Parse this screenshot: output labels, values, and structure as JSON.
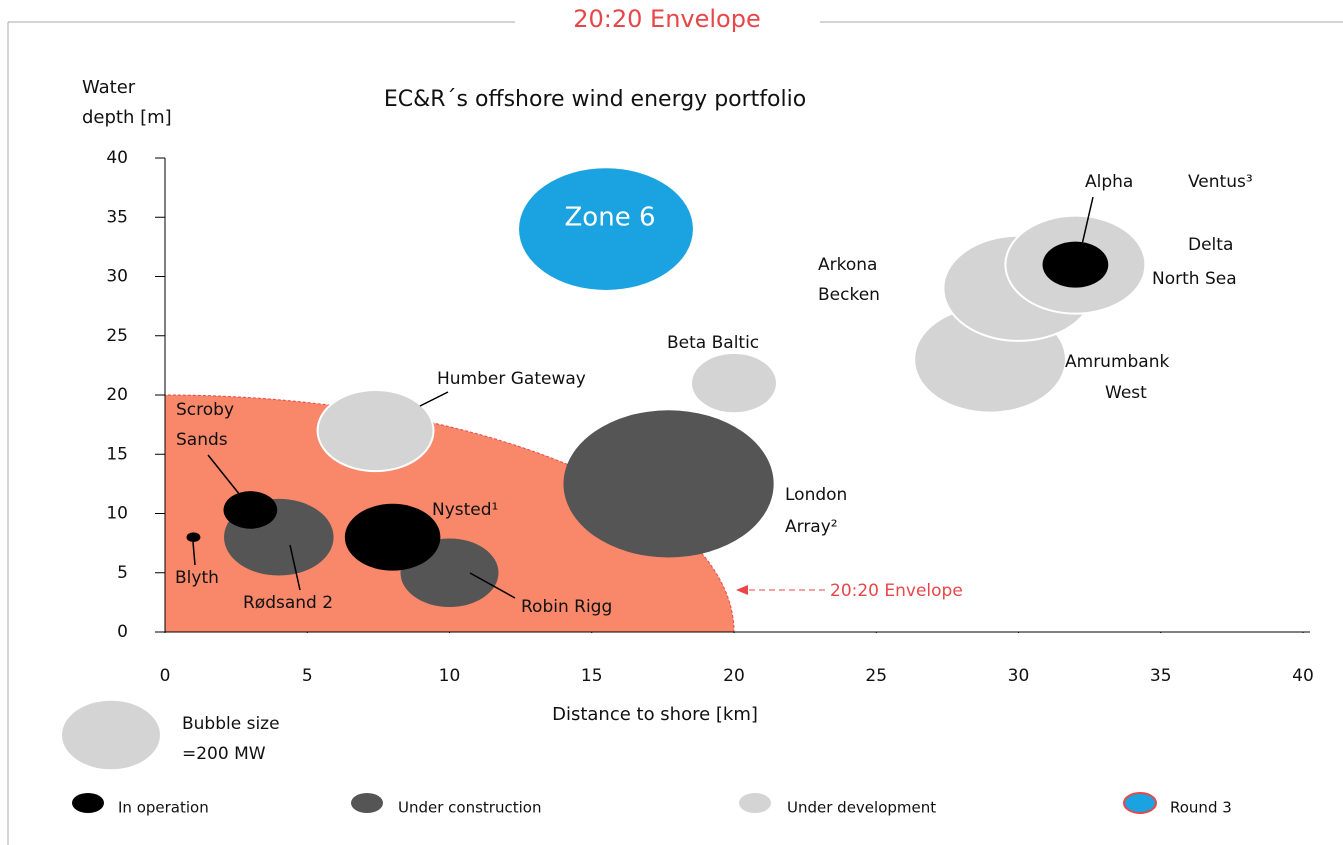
{
  "header": "20:20 Envelope",
  "chart_data": {
    "type": "bubble",
    "title": "EC&R´s offshore wind energy portfolio",
    "y_label": [
      "Water",
      "depth [m]"
    ],
    "x_label": "Distance to shore [km]",
    "xlim": [
      0,
      40
    ],
    "xticks": [
      0,
      5,
      10,
      15,
      20,
      25,
      30,
      35,
      40
    ],
    "ylim": [
      0,
      40
    ],
    "yticks": [
      0,
      5,
      10,
      15,
      20,
      25,
      30,
      35,
      40
    ],
    "envelope": {
      "label": "20:20 Envelope",
      "x": 20,
      "y": 20,
      "color": "#f9876a"
    },
    "size_legend": {
      "value": 200,
      "label": [
        "Bubble size",
        "=200 MW"
      ]
    },
    "series": [
      {
        "name": "Round 3",
        "color": "#1aa3e0",
        "x": [
          15.5
        ],
        "y": [
          34
        ],
        "size": [
          630
        ],
        "labels": [
          [
            "Zone 6"
          ]
        ]
      },
      {
        "name": "Under development",
        "color": "#d4d4d4",
        "x": [
          29,
          30,
          32,
          7.4,
          20
        ],
        "y": [
          23,
          29,
          31,
          17,
          21
        ],
        "size": [
          480,
          470,
          408,
          280,
          154
        ],
        "labels": [
          [
            "Amrumbank",
            "West"
          ],
          [
            "Arkona",
            "Becken"
          ],
          [
            "Delta",
            "North Sea"
          ],
          [
            "Humber Gateway"
          ],
          [
            "Beta Baltic"
          ]
        ]
      },
      {
        "name": "Under construction",
        "color": "#555555",
        "x": [
          4,
          10,
          17.7
        ],
        "y": [
          8,
          5,
          12.5
        ],
        "size": [
          250,
          200,
          920
        ],
        "labels": [
          [
            "Rødsand 2"
          ],
          [
            "Robin Rigg"
          ],
          [
            "London",
            "Array²"
          ]
        ]
      },
      {
        "name": "In operation",
        "color": "#000000",
        "x": [
          3,
          1,
          8,
          32
        ],
        "y": [
          10.3,
          8,
          8,
          31
        ],
        "size": [
          60,
          4,
          190,
          90
        ],
        "labels": [
          [
            "Scroby",
            "Sands"
          ],
          [
            "Blyth"
          ],
          [
            "Nysted¹"
          ],
          [
            "Alpha",
            "Ventus³"
          ]
        ]
      }
    ]
  }
}
